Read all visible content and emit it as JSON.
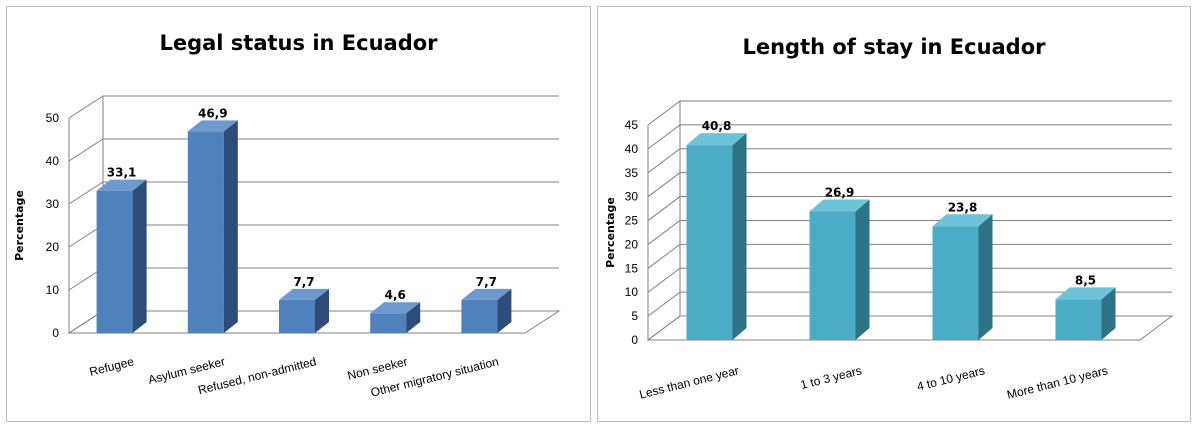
{
  "chart_data": [
    {
      "type": "bar",
      "title": "Legal status in Ecuador",
      "ylabel": "Percentage",
      "xlabel": "",
      "categories": [
        "Refugee",
        "Asylum seeker",
        "Refused, non-admitted",
        "Non seeker",
        "Other migratory situation"
      ],
      "values": [
        33.1,
        46.9,
        7.7,
        4.6,
        7.7
      ],
      "value_labels": [
        "33,1",
        "46,9",
        "7,7",
        "4,6",
        "7,7"
      ],
      "yticks": [
        "0",
        "10",
        "20",
        "30",
        "40",
        "50"
      ],
      "ylim": [
        0,
        50
      ],
      "grid": true,
      "legend": "none",
      "colors": {
        "front": "#4f81bd",
        "side": "#2d4d78",
        "top": "#6d99cf"
      }
    },
    {
      "type": "bar",
      "title": "Length of stay in Ecuador",
      "ylabel": "Percentage",
      "xlabel": "",
      "categories": [
        "Less than one year",
        "1 to 3 years",
        "4 to 10 years",
        "More than 10 years"
      ],
      "values": [
        40.8,
        26.9,
        23.8,
        8.5
      ],
      "value_labels": [
        "40,8",
        "26,9",
        "23,8",
        "8,5"
      ],
      "yticks": [
        "0",
        "5",
        "10",
        "15",
        "20",
        "25",
        "30",
        "35",
        "40",
        "45"
      ],
      "ylim": [
        0,
        45
      ],
      "grid": true,
      "legend": "none",
      "colors": {
        "front": "#4bacc6",
        "side": "#2e7385",
        "top": "#6ec3d9"
      }
    }
  ]
}
